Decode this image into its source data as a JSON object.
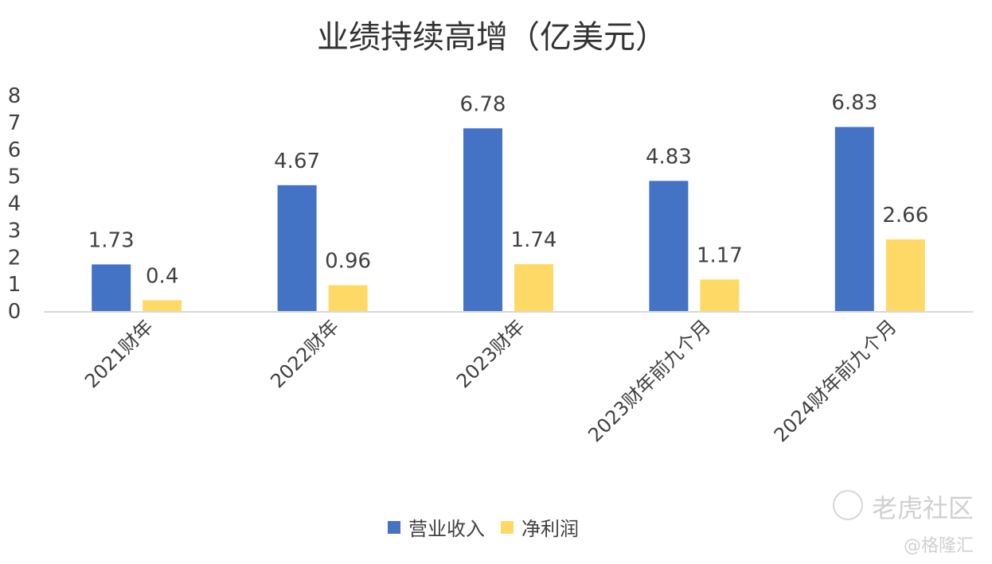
{
  "chart_data": {
    "type": "bar",
    "title": "业绩持续高增（亿美元）",
    "categories": [
      "2021财年",
      "2022财年",
      "2023财年",
      "2023财年前九个月",
      "2024财年前九个月"
    ],
    "series": [
      {
        "name": "营业收入",
        "values": [
          1.73,
          4.67,
          6.78,
          4.83,
          6.83
        ],
        "color": "#4472C4"
      },
      {
        "name": "净利润",
        "values": [
          0.4,
          0.96,
          1.74,
          1.17,
          2.66
        ],
        "color": "#FFD966"
      }
    ],
    "ylim": [
      0,
      8
    ],
    "yticks": [
      "0",
      "1",
      "2",
      "3",
      "4",
      "5",
      "6",
      "7",
      "8"
    ],
    "grid": false,
    "legend": "bottom",
    "data_labels": true
  },
  "watermark": {
    "brand": "老虎社区",
    "source": "@格隆汇"
  }
}
